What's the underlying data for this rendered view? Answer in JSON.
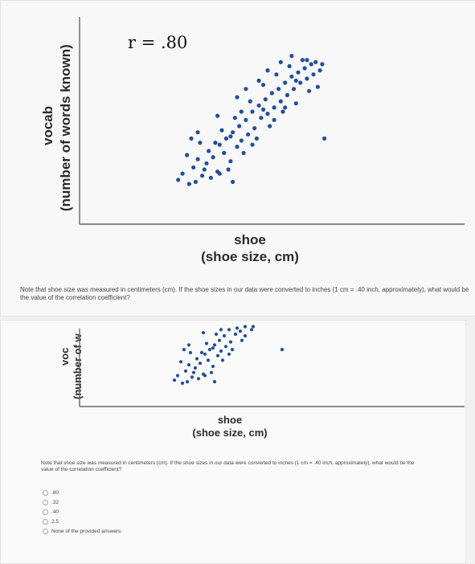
{
  "chart_data": [
    {
      "type": "scatter",
      "title": "r = .80",
      "ylabel_line1": "vocab",
      "ylabel_line2": "(number of words known)",
      "xlabel_line1": "shoe",
      "xlabel_line2": "(shoe size, cm)",
      "r": 0.8,
      "grid": false,
      "dot_color": "#1f4fa0",
      "points": [
        [
          2.1,
          1.6
        ],
        [
          2.3,
          1.9
        ],
        [
          2.6,
          1.4
        ],
        [
          2.8,
          2.2
        ],
        [
          3.0,
          2.6
        ],
        [
          3.2,
          1.8
        ],
        [
          3.4,
          2.4
        ],
        [
          3.5,
          3.0
        ],
        [
          3.7,
          2.7
        ],
        [
          3.9,
          2.0
        ],
        [
          4.0,
          3.3
        ],
        [
          4.2,
          2.9
        ],
        [
          4.3,
          3.6
        ],
        [
          4.5,
          2.5
        ],
        [
          4.6,
          3.9
        ],
        [
          4.8,
          3.2
        ],
        [
          4.9,
          4.2
        ],
        [
          5.0,
          3.5
        ],
        [
          5.2,
          4.5
        ],
        [
          5.3,
          3.8
        ],
        [
          5.5,
          4.9
        ],
        [
          5.6,
          4.1
        ],
        [
          5.8,
          5.2
        ],
        [
          5.9,
          4.6
        ],
        [
          6.1,
          5.5
        ],
        [
          6.2,
          4.8
        ],
        [
          6.4,
          5.8
        ],
        [
          6.5,
          5.1
        ],
        [
          6.7,
          6.0
        ],
        [
          6.8,
          5.4
        ],
        [
          7.0,
          6.3
        ],
        [
          7.1,
          5.7
        ],
        [
          7.3,
          6.6
        ],
        [
          7.4,
          6.0
        ],
        [
          7.6,
          6.8
        ],
        [
          7.7,
          6.3
        ],
        [
          7.9,
          7.0
        ],
        [
          8.0,
          6.5
        ],
        [
          8.2,
          7.2
        ],
        [
          8.3,
          6.7
        ],
        [
          3.1,
          3.4
        ],
        [
          3.6,
          1.7
        ],
        [
          4.1,
          4.0
        ],
        [
          4.4,
          2.1
        ],
        [
          4.7,
          4.6
        ],
        [
          5.1,
          2.9
        ],
        [
          5.4,
          5.4
        ],
        [
          5.7,
          3.6
        ],
        [
          6.0,
          6.2
        ],
        [
          6.3,
          4.2
        ],
        [
          6.6,
          6.7
        ],
        [
          6.9,
          4.9
        ],
        [
          7.2,
          7.1
        ],
        [
          7.5,
          5.3
        ],
        [
          7.8,
          7.4
        ],
        [
          8.1,
          5.9
        ],
        [
          8.4,
          7.3
        ],
        [
          8.6,
          6.9
        ],
        [
          8.5,
          6.1
        ],
        [
          8.7,
          7.2
        ],
        [
          2.5,
          2.8
        ],
        [
          2.9,
          1.5
        ],
        [
          3.3,
          2.1
        ],
        [
          3.8,
          3.4
        ],
        [
          4.0,
          1.9
        ],
        [
          4.5,
          3.7
        ],
        [
          5.0,
          4.9
        ],
        [
          5.5,
          3.3
        ],
        [
          6.0,
          5.0
        ],
        [
          6.5,
          4.5
        ],
        [
          7.0,
          5.1
        ],
        [
          7.5,
          6.4
        ],
        [
          8.0,
          7.4
        ],
        [
          5.8,
          6.4
        ],
        [
          6.2,
          6.9
        ],
        [
          6.8,
          7.3
        ],
        [
          7.3,
          7.6
        ],
        [
          4.8,
          5.6
        ],
        [
          5.2,
          6.0
        ],
        [
          3.9,
          4.7
        ],
        [
          8.8,
          3.6
        ],
        [
          2.7,
          3.6
        ],
        [
          3.0,
          3.9
        ],
        [
          4.6,
          1.5
        ]
      ]
    }
  ],
  "top": {
    "rtext": "r = .80",
    "note": "Note that shoe size was measured in centimeters (cm). If the shoe sizes in our data were converted to inches (1 cm = .40 inch, approximately), what would be the value of the correlation coefficient?"
  },
  "bottom": {
    "ylabel_line1": "voc",
    "ylabel_line2": "(number of w",
    "xlabel_line1": "shoe",
    "xlabel_line2": "(shoe size, cm)",
    "note": "Note that shoe size was measured in centimeters (cm). If the shoe sizes in our data were converted to inches (1 cm = .40 inch, approximately), what would be the value of the correlation coefficient?",
    "options": [
      ".80",
      ".32",
      ".40",
      "2.5",
      "None of the provided answers."
    ]
  }
}
